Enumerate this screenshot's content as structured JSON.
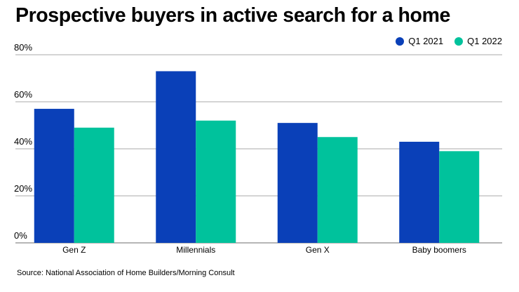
{
  "chart_data": {
    "type": "bar",
    "title": "Prospective buyers in active search for a home",
    "categories": [
      "Gen Z",
      "Millennials",
      "Gen X",
      "Baby boomers"
    ],
    "series": [
      {
        "name": "Q1 2021",
        "color": "#0a40b8",
        "values": [
          57,
          73,
          51,
          43
        ]
      },
      {
        "name": "Q1 2022",
        "color": "#00c29c",
        "values": [
          49,
          52,
          45,
          39
        ]
      }
    ],
    "y_ticks": [
      0,
      20,
      40,
      60,
      80
    ],
    "y_tick_labels": [
      "0%",
      "20%",
      "40%",
      "60%",
      "80%"
    ],
    "ylim": [
      0,
      80
    ],
    "xlabel": "",
    "ylabel": "",
    "grid": true,
    "legend_position": "top-right",
    "source": "Source: National Association of Home Builders/Morning Consult"
  }
}
